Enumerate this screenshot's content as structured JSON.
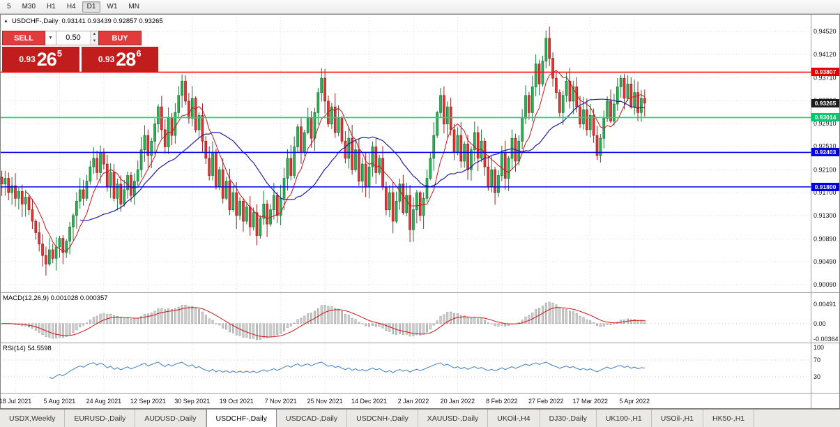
{
  "toolbar": {
    "timeframes": [
      "5",
      "M30",
      "H1",
      "H4",
      "D1",
      "W1",
      "MN"
    ],
    "active_timeframe": "D1"
  },
  "icons": {
    "chart_marker": "▲",
    "dropdown": "▼",
    "spin_up": "▲",
    "spin_down": "▼"
  },
  "chart": {
    "header": {
      "title": "USDCHF-,Daily",
      "ohlc": "0.93141 0.93439 0.92857 0.93265"
    },
    "trade_panel": {
      "sell_label": "SELL",
      "buy_label": "BUY",
      "lot": "0.50",
      "sell_quote": {
        "prefix": "0.93",
        "big": "26",
        "sup": "5"
      },
      "buy_quote": {
        "prefix": "0.93",
        "big": "28",
        "sup": "6"
      }
    },
    "y_axis_labels": [
      "0.94520",
      "0.94120",
      "0.93710",
      "0.93310",
      "0.92910",
      "0.92510",
      "0.92100",
      "0.91700",
      "0.91300",
      "0.90890",
      "0.90490",
      "0.90090"
    ],
    "levels": [
      {
        "label": "0.93807",
        "value": 0.93807,
        "color": "#dd0000",
        "line": true,
        "line_color": "#ff1111"
      },
      {
        "label": "0.93265",
        "value": 0.93265,
        "color": "#1a1a1a",
        "line": false,
        "line_color": "#1a1a1a"
      },
      {
        "label": "0.93014",
        "value": 0.93014,
        "color": "#00c96d",
        "line": true,
        "line_color": "#00e07a"
      },
      {
        "label": "0.92403",
        "value": 0.92403,
        "color": "#0000d8",
        "line": true,
        "line_color": "#0000e8"
      },
      {
        "label": "0.91800",
        "value": 0.918,
        "color": "#0000d8",
        "line": true,
        "line_color": "#0000e8"
      }
    ]
  },
  "macd": {
    "header": "MACD(12,26,9) 0.001028 0.000357",
    "value": "0.001028",
    "signal_value": "0.000357",
    "axis_labels": [
      "0.00491",
      "0.00",
      "-0.00364"
    ]
  },
  "rsi": {
    "header": "RSI(14) 54.5598",
    "value": "54.5598",
    "axis_labels": [
      {
        "label": "100",
        "value": 100
      },
      {
        "label": "70",
        "value": 70
      },
      {
        "label": "30",
        "value": 30
      }
    ]
  },
  "tabs": {
    "active": "USDCHF-,Daily",
    "items": [
      "USDX,Weekly",
      "EURUSD-,Daily",
      "AUDUSD-,Daily",
      "USDCHF-,Daily",
      "USDCAD-,Daily",
      "USDCNH-,Daily",
      "XAUUSD-,Daily",
      "UKOil-,H4",
      "DJ30-,Daily",
      "UK100-,H1",
      "USOil-,H1",
      "HK50-,H1"
    ],
    "active_index": 3
  },
  "chart_data": {
    "type": "candlestick",
    "symbol": "USDCHF-",
    "timeframe": "Daily",
    "y_range": [
      0.9009,
      0.9452
    ],
    "current_price": 0.93265,
    "level_lines": [
      0.93807,
      0.93014,
      0.92403,
      0.918
    ],
    "x_labels": [
      "18 Jul 2021",
      "5 Aug 2021",
      "24 Aug 2021",
      "12 Sep 2021",
      "30 Sep 2021",
      "19 Oct 2021",
      "7 Nov 2021",
      "25 Nov 2021",
      "14 Dec 2021",
      "2 Jan 2022",
      "20 Jan 2022",
      "8 Feb 2022",
      "27 Feb 2022",
      "17 Mar 2022",
      "5 Apr 2022"
    ],
    "closes": [
      0.9185,
      0.9195,
      0.917,
      0.9182,
      0.916,
      0.9172,
      0.915,
      0.9162,
      0.914,
      0.912,
      0.91,
      0.908,
      0.906,
      0.9045,
      0.907,
      0.9055,
      0.9075,
      0.909,
      0.9065,
      0.9085,
      0.911,
      0.913,
      0.9155,
      0.9175,
      0.916,
      0.919,
      0.9215,
      0.923,
      0.9205,
      0.924,
      0.922,
      0.918,
      0.9205,
      0.916,
      0.9185,
      0.915,
      0.9175,
      0.92,
      0.9165,
      0.919,
      0.921,
      0.9245,
      0.927,
      0.9235,
      0.926,
      0.929,
      0.932,
      0.928,
      0.925,
      0.93,
      0.927,
      0.931,
      0.934,
      0.9365,
      0.933,
      0.93,
      0.9335,
      0.928,
      0.9305,
      0.926,
      0.923,
      0.92,
      0.924,
      0.918,
      0.921,
      0.916,
      0.919,
      0.914,
      0.917,
      0.913,
      0.9155,
      0.912,
      0.9145,
      0.911,
      0.9135,
      0.9095,
      0.9125,
      0.915,
      0.9115,
      0.914,
      0.9165,
      0.913,
      0.916,
      0.9195,
      0.923,
      0.92,
      0.925,
      0.9285,
      0.924,
      0.9275,
      0.93,
      0.9265,
      0.931,
      0.9345,
      0.937,
      0.933,
      0.929,
      0.932,
      0.9275,
      0.93,
      0.926,
      0.923,
      0.9265,
      0.921,
      0.9245,
      0.919,
      0.922,
      0.918,
      0.9215,
      0.925,
      0.9205,
      0.923,
      0.918,
      0.914,
      0.917,
      0.912,
      0.9155,
      0.9185,
      0.9135,
      0.9165,
      0.9105,
      0.914,
      0.917,
      0.913,
      0.916,
      0.9195,
      0.923,
      0.927,
      0.931,
      0.934,
      0.929,
      0.932,
      0.928,
      0.924,
      0.927,
      0.9225,
      0.9255,
      0.921,
      0.9245,
      0.9275,
      0.923,
      0.926,
      0.9215,
      0.918,
      0.921,
      0.917,
      0.92,
      0.924,
      0.9195,
      0.923,
      0.9265,
      0.9225,
      0.926,
      0.93,
      0.934,
      0.931,
      0.9355,
      0.9395,
      0.936,
      0.94,
      0.944,
      0.9405,
      0.937,
      0.9345,
      0.931,
      0.934,
      0.9365,
      0.933,
      0.9355,
      0.932,
      0.929,
      0.9315,
      0.928,
      0.9305,
      0.927,
      0.9235,
      0.9265,
      0.93,
      0.933,
      0.9295,
      0.9325,
      0.9355,
      0.937,
      0.9335,
      0.936,
      0.932,
      0.9345,
      0.931,
      0.9335,
      0.93265
    ]
  }
}
